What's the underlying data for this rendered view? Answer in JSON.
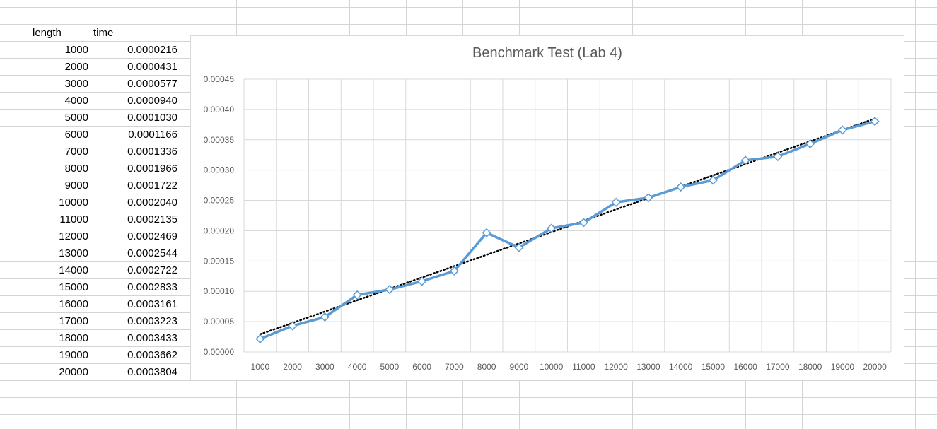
{
  "sheet": {
    "headers": {
      "length": "length",
      "time": "time"
    },
    "rows": [
      {
        "length": "1000",
        "time": "0.0000216"
      },
      {
        "length": "2000",
        "time": "0.0000431"
      },
      {
        "length": "3000",
        "time": "0.0000577"
      },
      {
        "length": "4000",
        "time": "0.0000940"
      },
      {
        "length": "5000",
        "time": "0.0001030"
      },
      {
        "length": "6000",
        "time": "0.0001166"
      },
      {
        "length": "7000",
        "time": "0.0001336"
      },
      {
        "length": "8000",
        "time": "0.0001966"
      },
      {
        "length": "9000",
        "time": "0.0001722"
      },
      {
        "length": "10000",
        "time": "0.0002040"
      },
      {
        "length": "11000",
        "time": "0.0002135"
      },
      {
        "length": "12000",
        "time": "0.0002469"
      },
      {
        "length": "13000",
        "time": "0.0002544"
      },
      {
        "length": "14000",
        "time": "0.0002722"
      },
      {
        "length": "15000",
        "time": "0.0002833"
      },
      {
        "length": "16000",
        "time": "0.0003161"
      },
      {
        "length": "17000",
        "time": "0.0003223"
      },
      {
        "length": "18000",
        "time": "0.0003433"
      },
      {
        "length": "19000",
        "time": "0.0003662"
      },
      {
        "length": "20000",
        "time": "0.0003804"
      }
    ]
  },
  "chart_data": {
    "type": "line",
    "title": "Benchmark Test (Lab 4)",
    "xlabel": "",
    "ylabel": "",
    "categories": [
      "1000",
      "2000",
      "3000",
      "4000",
      "5000",
      "6000",
      "7000",
      "8000",
      "9000",
      "10000",
      "11000",
      "12000",
      "13000",
      "14000",
      "15000",
      "16000",
      "17000",
      "18000",
      "19000",
      "20000"
    ],
    "series": [
      {
        "values": [
          2.16e-05,
          4.31e-05,
          5.77e-05,
          9.4e-05,
          0.000103,
          0.0001166,
          0.0001336,
          0.0001966,
          0.0001722,
          0.000204,
          0.0002135,
          0.0002469,
          0.0002544,
          0.0002722,
          0.0002833,
          0.0003161,
          0.0003223,
          0.0003433,
          0.0003662,
          0.0003804
        ],
        "color": "#5b9bd5",
        "marker": "diamond"
      }
    ],
    "trendline": {
      "type": "linear",
      "style": "dotted",
      "color": "#000000"
    },
    "ylim": [
      0,
      0.00045
    ],
    "yticks": [
      "0.00000",
      "0.00005",
      "0.00010",
      "0.00015",
      "0.00020",
      "0.00025",
      "0.00030",
      "0.00035",
      "0.00040",
      "0.00045"
    ],
    "grid": true,
    "legend": "none"
  }
}
